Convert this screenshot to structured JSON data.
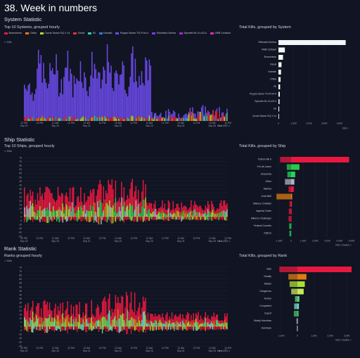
{
  "page": {
    "title": "38. Week in numbers"
  },
  "sections": {
    "system": {
      "title": "System Statistic",
      "left_title": "Top 10 Systems, grouped hourly",
      "right_title": "Total Kills, grouped by System"
    },
    "ship": {
      "title": "Ship Statistic",
      "left_title": "Top 10 Ships, grouped hourly",
      "right_title": "Total Kills, grouped by Ship"
    },
    "rank": {
      "title": "Rank Statistic",
      "left_title": "Ranks grouped hourly",
      "right_title": "Total Kills, grouped by Rank"
    }
  },
  "units": {
    "kills": "< Kills",
    "next_utc": "Next UTC >",
    "kills_axis": "Kills >",
    "kills_deaths": "Kills / Deaths >"
  },
  "time_ticks": [
    "12 PM",
    "12 AM\nSep 20",
    "12 PM",
    "12 AM\nSep 21",
    "12 PM",
    "12 AM\nSep 22",
    "12 PM",
    "12 AM\nSep 23",
    "12 PM",
    "12 AM\nSep 24",
    "12 PM",
    "12 AM\nSep 25",
    "12 PM"
  ],
  "first_tick": "12 PM\nSep 19",
  "colors": {
    "kills": "#e8183f",
    "deaths": "#c8152e",
    "bg": "#111422",
    "grid": "#23283a",
    "systems": [
      "#e8183f",
      "#e07a14",
      "#aadf2e",
      "#e83030",
      "#2ed0a0",
      "#2a7ae0",
      "#6a4ae8",
      "#7a3ae8",
      "#a02ad0",
      "#e02ab0"
    ],
    "ship_colors": [
      "#e8183f",
      "#29c94a",
      "#22d45c",
      "#aeb3bd",
      "#e8183f",
      "#e07a14",
      "#e8183f",
      "#e8183f",
      "#e8183f",
      "#2ad45c",
      "#2ad45c"
    ],
    "rank_colors": [
      "#e8183f",
      "#e07a14",
      "#aadf2e",
      "#c8e85a",
      "#5acf7a",
      "#7ad8c8",
      "#4ac06a",
      "#aab0c0",
      "#b0b6c8"
    ]
  },
  "chart_data": [
    {
      "type": "bar",
      "title": "Top 10 Systems, grouped hourly",
      "ylabel": "Kills",
      "x": "hourly, Sep 19 12 PM to Sep 26",
      "stacked": true,
      "series_names": [
        "Bormorinos",
        "Chiba",
        "Crucis Sector EQ-Y c4",
        "Decat",
        "Eli",
        "Kamalo",
        "Puppis Sector TO-R b4-4",
        "Shinrarta Dezhra",
        "Synuefe NL-N c23-4",
        "VMB Centauri"
      ],
      "ylim": [
        0,
        100
      ]
    },
    {
      "type": "bar",
      "title": "Total Kills, grouped by System",
      "xlabel": "Kills",
      "categories": [
        "Shinrarta Dezhra",
        "VMB Centauri",
        "Bormorinos",
        "Decat",
        "Kamalo",
        "Chiba",
        "Eli",
        "Puppis Sector TO-R b4-4",
        "Synuefe NL-N c23-4",
        "Eli",
        "Crucis Sector EQ-Y c4"
      ],
      "values": [
        4400,
        420,
        300,
        200,
        170,
        140,
        110,
        90,
        70,
        50,
        40
      ],
      "ticks": [
        "0",
        "1,000",
        "2,000",
        "3,000",
        "4,000"
      ],
      "xlim": [
        0,
        4600
      ]
    },
    {
      "type": "bar",
      "title": "Top 10 Ships, grouped hourly",
      "ylabel": "Kills",
      "x": "hourly, Sep 19 12 PM to Sep 26",
      "ylim": [
        -25,
        75
      ],
      "yticks": [
        75,
        70,
        65,
        60,
        55,
        50,
        45,
        40,
        35,
        30,
        25,
        20,
        15,
        10,
        5,
        0,
        -5,
        -10,
        -15,
        -20,
        -25
      ]
    },
    {
      "type": "bar",
      "title": "Total Kills, grouped by Ship",
      "xlabel": "Kills / Deaths",
      "categories": [
        "Python Mk II",
        "Fer-de-Lance",
        "Anaconda",
        "Other",
        "Mamba",
        "Krait MkII",
        "Alliance Chieftain",
        "Imperial Cutter",
        "Alliance Challenger",
        "Federal Corvette",
        "Python"
      ],
      "kills": [
        4800,
        700,
        350,
        280,
        230,
        100,
        80,
        60,
        40,
        30,
        20
      ],
      "deaths": [
        900,
        350,
        300,
        500,
        200,
        1200,
        120,
        180,
        200,
        150,
        130
      ],
      "ticks": [
        "-1,000",
        "0",
        "1,000",
        "2,000",
        "3,000",
        "4,000",
        "5,000"
      ],
      "xlim": [
        -1500,
        5000
      ]
    },
    {
      "type": "bar",
      "title": "Ranks grouped hourly",
      "ylabel": "Kills",
      "x": "hourly, Sep 19 12 PM to Sep 26",
      "ylim": [
        -25,
        75
      ],
      "yticks": [
        75,
        70,
        65,
        60,
        55,
        50,
        45,
        40,
        35,
        30,
        25,
        20,
        15,
        10,
        5,
        0,
        -5,
        -10,
        -15,
        -20,
        -25
      ]
    },
    {
      "type": "bar",
      "title": "Total Kills, grouped by Rank",
      "xlabel": "Kills / Deaths",
      "categories": [
        "Elite",
        "Deadly",
        "Master",
        "Dangerous",
        "Novice",
        "Competent",
        "Expert",
        "Mostly Harmless",
        "Harmless"
      ],
      "kills": [
        3300,
        550,
        450,
        380,
        120,
        90,
        70,
        30,
        20
      ],
      "deaths": [
        1100,
        550,
        480,
        380,
        150,
        200,
        220,
        60,
        40
      ],
      "ticks": [
        "-1,000",
        "0",
        "1,000",
        "2,000",
        "3,000"
      ],
      "xlim": [
        -1500,
        3300
      ]
    }
  ]
}
